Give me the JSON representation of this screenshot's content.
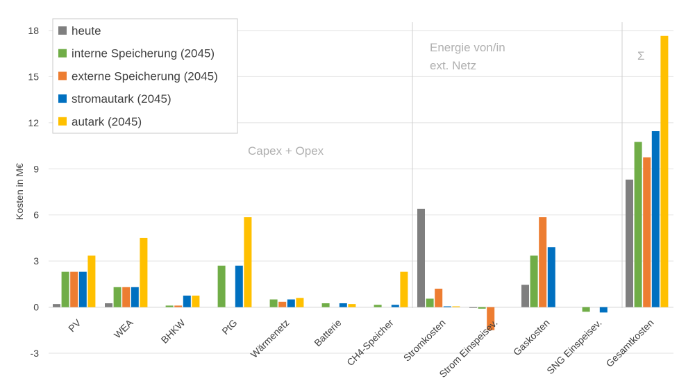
{
  "chart_data": {
    "type": "bar",
    "ylabel": "Kosten in M€",
    "ylim": [
      -3,
      18
    ],
    "yticks": [
      -3,
      0,
      3,
      6,
      9,
      12,
      15,
      18
    ],
    "grid": true,
    "legend_position": "top-left",
    "categories": [
      "PV",
      "WEA",
      "BHKW",
      "PtG",
      "Wärmenetz",
      "Batterie",
      "CH4-Speicher",
      "Stromkosten",
      "Strom Einspeisev.",
      "Gaskosten",
      "SNG Einspeisev.",
      "Gesamtkosten"
    ],
    "series": [
      {
        "name": "heute",
        "color": "#7f7f7f",
        "values": [
          0.2,
          0.25,
          0,
          0,
          0,
          0,
          0,
          6.4,
          -0.05,
          1.45,
          0,
          8.3
        ]
      },
      {
        "name": "interne Speicherung (2045)",
        "color": "#70ad47",
        "values": [
          2.3,
          1.3,
          0.1,
          2.7,
          0.5,
          0.25,
          0.15,
          0.55,
          -0.1,
          3.35,
          -0.3,
          10.75
        ]
      },
      {
        "name": "externe Speicherung (2045)",
        "color": "#ed7d31",
        "values": [
          2.3,
          1.3,
          0.1,
          0,
          0.35,
          0,
          0,
          1.2,
          -1.5,
          5.85,
          0,
          9.75
        ]
      },
      {
        "name": "stromautark (2045)",
        "color": "#0070c0",
        "values": [
          2.3,
          1.3,
          0.75,
          2.7,
          0.5,
          0.25,
          0.15,
          0.05,
          0,
          3.9,
          -0.35,
          11.45
        ]
      },
      {
        "name": "autark (2045)",
        "color": "#ffc000",
        "values": [
          3.35,
          4.5,
          0.75,
          5.85,
          0.6,
          0.2,
          2.3,
          0.05,
          0,
          0,
          0,
          17.65
        ]
      }
    ],
    "annotations": [
      {
        "text": "Capex + Opex",
        "lines": [
          "Capex + Opex"
        ]
      },
      {
        "text": "Energie von/in ext. Netz",
        "lines": [
          "Energie von/in",
          "ext. Netz"
        ]
      },
      {
        "text": "Σ",
        "lines": [
          "Σ"
        ]
      }
    ]
  }
}
